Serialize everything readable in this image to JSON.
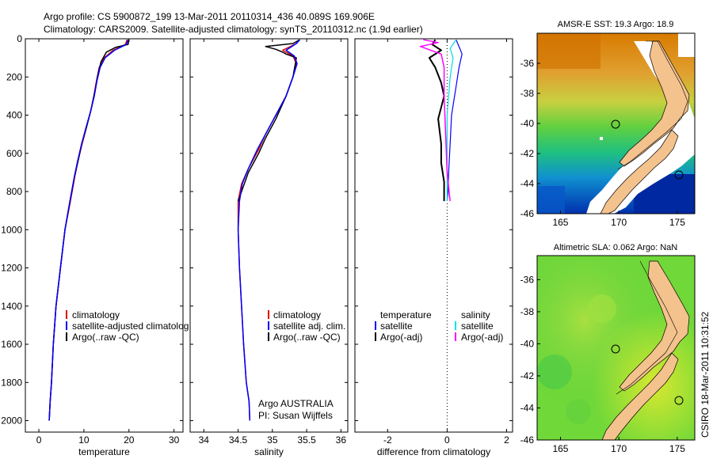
{
  "header": {
    "line1": "Argo profile: CS 5900872_199 13-Mar-2011 20110314_436 40.089S 169.906E",
    "line2": "Climatology: CARS2009. Satellite-adjusted climatology: synTS_20110312.nc (1.9d earlier)"
  },
  "colors": {
    "climatology": "#e00000",
    "satellite": "#0000ff",
    "argo": "#000000",
    "sat_salinity": "#00e0e0",
    "argo_salinity": "#ff00ff",
    "land": "#f4c28c"
  },
  "side_label": "CSIRO 18-Mar-2011 10:31:52",
  "chart_data": [
    {
      "id": "temperature",
      "type": "line",
      "xlabel": "temperature",
      "ylabel": "",
      "xlim": [
        -3,
        32
      ],
      "ylim": [
        2060,
        0
      ],
      "xticks": [
        "0",
        "10",
        "20",
        "30"
      ],
      "xtick_values": [
        0,
        10,
        20,
        30
      ],
      "yticks": [
        "0",
        "200",
        "400",
        "600",
        "800",
        "1000",
        "1200",
        "1400",
        "1600",
        "1800",
        "2000"
      ],
      "ytick_values": [
        0,
        200,
        400,
        600,
        800,
        1000,
        1200,
        1400,
        1600,
        1800,
        2000
      ],
      "legend": [
        "climatology",
        "satellite-adjusted climatolog",
        "Argo(..raw -QC)"
      ],
      "series": [
        {
          "name": "climatology",
          "color": "#e00000",
          "width": 1.5,
          "x": [
            19.6,
            19.2,
            16.5,
            14.5,
            13.4,
            12.8,
            12.2,
            11.5,
            10.5,
            9.5,
            8.7,
            8.0,
            7.0,
            5.8,
            4.8,
            3.8,
            3.2,
            2.8,
            2.5,
            2.3
          ],
          "y": [
            5,
            30,
            60,
            100,
            150,
            220,
            300,
            380,
            470,
            560,
            640,
            720,
            850,
            1000,
            1200,
            1400,
            1600,
            1800,
            1900,
            2000
          ]
        },
        {
          "name": "Argo(..raw -QC)",
          "color": "#000000",
          "width": 1.5,
          "x": [
            20.0,
            19.8,
            17.0,
            15.0,
            13.8,
            13.0,
            12.4,
            11.6,
            10.6,
            9.5,
            8.7,
            7.9,
            6.9,
            5.8,
            4.8,
            3.8,
            3.2,
            2.8,
            2.5,
            2.3
          ],
          "y": [
            5,
            30,
            45,
            70,
            120,
            200,
            280,
            370,
            460,
            550,
            640,
            720,
            850,
            1000,
            1200,
            1400,
            1600,
            1800,
            1900,
            2000
          ]
        },
        {
          "name": "satellite-adjusted climatolog",
          "color": "#0000ff",
          "width": 1.5,
          "x": [
            19.8,
            19.4,
            16.8,
            14.7,
            13.6,
            12.9,
            12.3,
            11.5,
            10.4,
            9.4,
            8.6,
            7.9,
            6.9,
            5.8,
            4.8,
            3.8,
            3.2,
            2.8,
            2.5,
            2.3
          ],
          "y": [
            5,
            30,
            60,
            100,
            150,
            220,
            300,
            380,
            470,
            560,
            640,
            720,
            850,
            1000,
            1200,
            1400,
            1600,
            1800,
            1900,
            2000
          ]
        }
      ]
    },
    {
      "id": "salinity",
      "type": "line",
      "xlabel": "salinity",
      "ylabel": "",
      "xlim": [
        33.8,
        36.1
      ],
      "ylim": [
        2060,
        0
      ],
      "xticks": [
        "34",
        "34.5",
        "35",
        "35.5",
        "36"
      ],
      "xtick_values": [
        34,
        34.5,
        35,
        35.5,
        36
      ],
      "legend": [
        "climatology",
        "satellite adj. clim.",
        "Argo(..raw -QC)"
      ],
      "annotation": [
        "Argo AUSTRALIA",
        "PI: Susan Wijffels"
      ],
      "series": [
        {
          "name": "climatology",
          "color": "#e00000",
          "width": 1.5,
          "x": [
            35.4,
            35.35,
            35.15,
            35.3,
            35.35,
            35.3,
            35.2,
            35.05,
            34.9,
            34.8,
            34.65,
            34.55,
            34.5,
            34.5,
            34.52,
            34.55,
            34.58,
            34.62,
            34.66,
            34.67
          ],
          "y": [
            5,
            25,
            60,
            90,
            130,
            200,
            300,
            400,
            500,
            580,
            680,
            760,
            850,
            1000,
            1200,
            1400,
            1600,
            1800,
            1900,
            2000
          ]
        },
        {
          "name": "Argo(..raw -QC)",
          "color": "#000000",
          "width": 1.5,
          "x": [
            35.4,
            35.3,
            34.9,
            35.05,
            35.15,
            35.2,
            35.35,
            35.3,
            35.2,
            35.05,
            34.9,
            34.8,
            34.65,
            34.55,
            34.5
          ],
          "y": [
            5,
            25,
            40,
            55,
            70,
            80,
            100,
            200,
            300,
            420,
            520,
            600,
            700,
            800,
            850
          ]
        },
        {
          "name": "satellite adj. clim.",
          "color": "#0000ff",
          "width": 1.5,
          "x": [
            35.4,
            35.35,
            35.2,
            35.32,
            35.36,
            35.3,
            35.2,
            35.05,
            34.9,
            34.78,
            34.65,
            34.56,
            34.52,
            34.5,
            34.52,
            34.55,
            34.58,
            34.62,
            34.66,
            34.67
          ],
          "y": [
            5,
            25,
            60,
            90,
            130,
            200,
            300,
            400,
            500,
            580,
            680,
            760,
            850,
            1000,
            1200,
            1400,
            1600,
            1800,
            1900,
            2000
          ]
        }
      ]
    },
    {
      "id": "difference",
      "type": "line",
      "xlabel": "difference from climatology",
      "ylabel": "",
      "xlim": [
        -3.1,
        2.2
      ],
      "ylim": [
        2060,
        0
      ],
      "xticks": [
        "-2",
        "0",
        "2"
      ],
      "xtick_values": [
        -2,
        0,
        2
      ],
      "legend": [
        "temperature",
        "satellite",
        "Argo(-adj)",
        "salinity",
        "satellite",
        "Argo(-adj)"
      ],
      "series": [
        {
          "name": "temperature satellite",
          "color": "#0000ff",
          "width": 1.2,
          "x": [
            0.3,
            0.4,
            0.5,
            0.4,
            0.3,
            0.15,
            0.1,
            0.05,
            0.03,
            0.0
          ],
          "y": [
            5,
            40,
            80,
            150,
            250,
            400,
            550,
            700,
            800,
            850
          ]
        },
        {
          "name": "temperature Argo(-adj)",
          "color": "#000000",
          "width": 2,
          "x": [
            -0.4,
            -0.5,
            -0.2,
            -0.6,
            -0.4,
            -0.2,
            -0.1,
            -0.3,
            -0.2,
            -0.2,
            -0.1,
            -0.1
          ],
          "y": [
            5,
            30,
            60,
            100,
            150,
            230,
            300,
            420,
            550,
            650,
            750,
            850
          ]
        },
        {
          "name": "salinity satellite",
          "color": "#00e0e0",
          "width": 1.2,
          "x": [
            0.3,
            0.1,
            0.2,
            0.1,
            0.0,
            0.0,
            0.0,
            0.0
          ],
          "y": [
            5,
            50,
            100,
            200,
            400,
            600,
            800,
            850
          ]
        },
        {
          "name": "salinity Argo(-adj)",
          "color": "#ff00ff",
          "width": 1.5,
          "x": [
            -0.8,
            -0.3,
            -0.9,
            -0.2,
            -0.1,
            -0.1,
            -0.05,
            0.0,
            0.1
          ],
          "y": [
            5,
            20,
            40,
            80,
            150,
            300,
            500,
            700,
            850
          ]
        }
      ]
    },
    {
      "id": "sst-map",
      "type": "heatmap",
      "title": "AMSR-E SST: 19.3 Argo: 18.9",
      "xticks": [
        "165",
        "170",
        "175"
      ],
      "xtick_values": [
        165,
        170,
        175
      ],
      "yticks": [
        "-36",
        "-38",
        "-40",
        "-42",
        "-44",
        "-46"
      ],
      "ytick_values": [
        -36,
        -38,
        -40,
        -42,
        -44,
        -46
      ],
      "xlim": [
        163,
        176.5
      ],
      "ylim": [
        -46,
        -34
      ]
    },
    {
      "id": "sla-map",
      "type": "heatmap",
      "title": "Altimetric SLA: 0.062 Argo: NaN",
      "xticks": [
        "165",
        "170",
        "175"
      ],
      "xtick_values": [
        165,
        170,
        175
      ],
      "yticks": [
        "-36",
        "-38",
        "-40",
        "-42",
        "-44",
        "-46"
      ],
      "ytick_values": [
        -36,
        -38,
        -40,
        -42,
        -44,
        -46
      ],
      "xlim": [
        163,
        176.5
      ],
      "ylim": [
        -46,
        -34.5
      ]
    }
  ]
}
